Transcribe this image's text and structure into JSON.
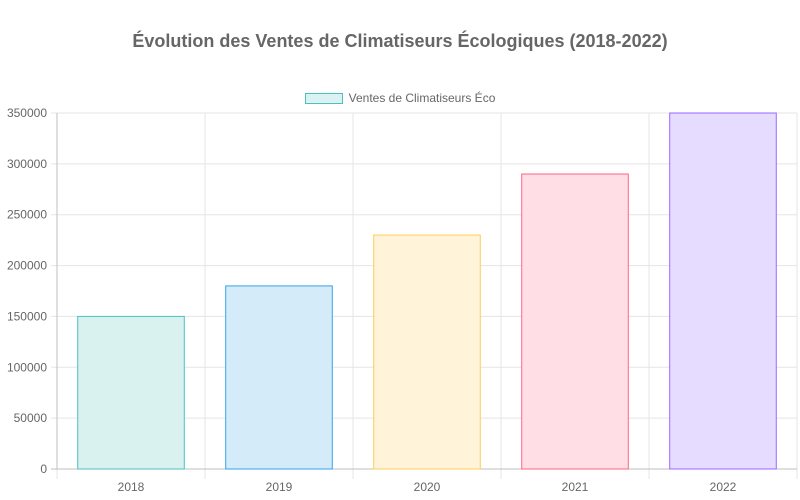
{
  "chart_data": {
    "type": "bar",
    "title": "Évolution des Ventes de Climatiseurs Écologiques (2018-2022)",
    "categories": [
      "2018",
      "2019",
      "2020",
      "2021",
      "2022"
    ],
    "series": [
      {
        "name": "Ventes de Climatiseurs Éco",
        "values": [
          150000,
          180000,
          230000,
          290000,
          350000
        ]
      }
    ],
    "ylim": [
      0,
      350000
    ],
    "yticks": [
      0,
      50000,
      100000,
      150000,
      200000,
      250000,
      300000,
      350000
    ],
    "xlabel": "",
    "ylabel": "",
    "grid": true,
    "legend_position": "top",
    "bar_fill_colors": [
      "#d9f2ef",
      "#d4ebfa",
      "#fff3d9",
      "#ffdfe5",
      "#e6dcff"
    ],
    "bar_border_colors": [
      "#4bc0c0",
      "#36a2eb",
      "#ffcd56",
      "#ff6384",
      "#9966ff"
    ],
    "legend_swatch_fill": "#dbf2f2",
    "legend_swatch_border": "#4bc0c0",
    "grid_color": "#e5e5e5",
    "axis_color": "#bfbfbf"
  }
}
